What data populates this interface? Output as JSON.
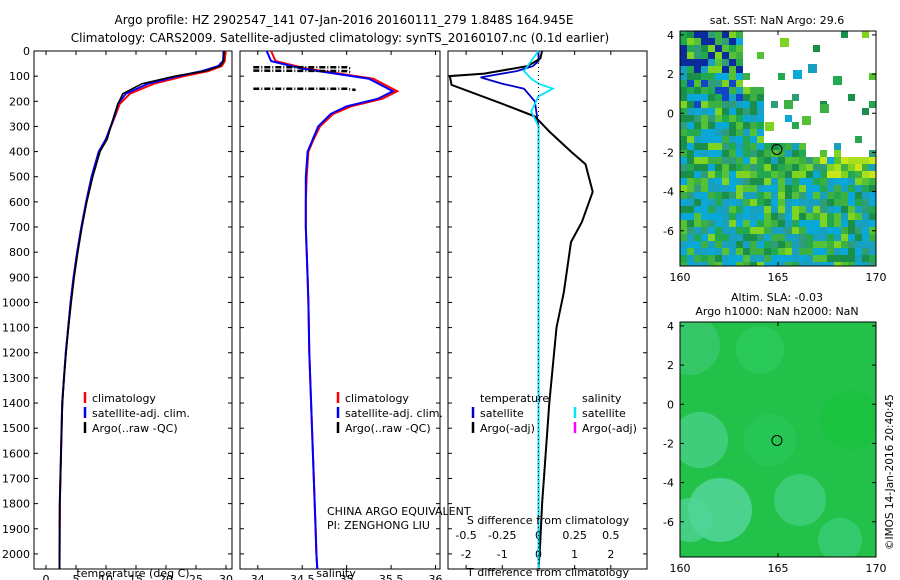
{
  "title": {
    "line1": "Argo profile: HZ 2902547_141 07-Jan-2016 20160111_279 1.848S 164.945E",
    "line2": "Climatology: CARS2009. Satellite-adjusted climatology: synTS_20160107.nc (0.1d earlier)"
  },
  "colors": {
    "climatology": "#ff0000",
    "satellite": "#0000ff",
    "argo": "#000000",
    "t_sat": "#0000cc",
    "s_sat": "#00e5ff",
    "s_argo": "#ff00ff"
  },
  "chart_data": [
    {
      "type": "line",
      "name": "temperature-profile",
      "xlabel": "temperature (deg C)",
      "ylabel": "",
      "xlim": [
        -2,
        31
      ],
      "ylim": [
        2060,
        0
      ],
      "xticks": [
        "0",
        "5",
        "10",
        "15",
        "20",
        "25",
        "30"
      ],
      "xtick_values": [
        0,
        5,
        10,
        15,
        20,
        25,
        30
      ],
      "yticks": [
        "0",
        "100",
        "200",
        "300",
        "400",
        "500",
        "600",
        "700",
        "800",
        "900",
        "1000",
        "1100",
        "1200",
        "1300",
        "1400",
        "1500",
        "1600",
        "1700",
        "1800",
        "1900",
        "2000"
      ],
      "ytick_values": [
        0,
        100,
        200,
        300,
        400,
        500,
        600,
        700,
        800,
        900,
        1000,
        1100,
        1200,
        1300,
        1400,
        1500,
        1600,
        1700,
        1800,
        1900,
        2000
      ],
      "legend": [
        "climatology",
        "satellite-adj. clim.",
        "Argo(..raw -QC)"
      ],
      "series": [
        {
          "name": "climatology",
          "x": [
            29.9,
            29.8,
            29.3,
            27,
            23,
            18,
            14,
            12.3,
            11.5,
            10,
            8.8,
            7.6,
            6.7,
            5.9,
            5.2,
            4.6,
            4.1,
            3.7,
            3.3,
            3,
            2.7,
            2.6,
            2.5,
            2.4,
            2.3,
            2.25
          ],
          "y": [
            0,
            40,
            60,
            80,
            100,
            130,
            170,
            210,
            260,
            350,
            400,
            500,
            600,
            700,
            800,
            900,
            1000,
            1100,
            1200,
            1300,
            1400,
            1500,
            1600,
            1700,
            1800,
            2060
          ]
        },
        {
          "name": "satellite-adj. clim.",
          "x": [
            29.6,
            29.5,
            28.7,
            26,
            22,
            17,
            13.3,
            12,
            11.4,
            10,
            8.8,
            7.6,
            6.7,
            5.9,
            5.2,
            4.6,
            4.1,
            3.7,
            3.3,
            3,
            2.7,
            2.6,
            2.5,
            2.4,
            2.3,
            2.25
          ],
          "y": [
            0,
            40,
            60,
            80,
            100,
            130,
            170,
            210,
            260,
            350,
            400,
            500,
            600,
            700,
            800,
            900,
            1000,
            1100,
            1200,
            1300,
            1400,
            1500,
            1600,
            1700,
            1800,
            2060
          ]
        },
        {
          "name": "Argo(..raw -QC)",
          "x": [
            29.7,
            29.6,
            29,
            26.5,
            21.5,
            16,
            12.8,
            12,
            11.3,
            10.2,
            9,
            7.8,
            6.8,
            6,
            5.3,
            4.7,
            4.2,
            3.75,
            3.35,
            3,
            2.75,
            2.62,
            2.5,
            2.4,
            2.3,
            2.25
          ],
          "y": [
            0,
            40,
            60,
            80,
            100,
            130,
            170,
            210,
            260,
            350,
            400,
            500,
            600,
            700,
            800,
            900,
            1000,
            1100,
            1200,
            1300,
            1400,
            1500,
            1600,
            1700,
            1800,
            2060
          ]
        }
      ]
    },
    {
      "type": "line",
      "name": "salinity-profile",
      "xlabel": "salinity",
      "xlim": [
        33.8,
        36.05
      ],
      "ylim": [
        2060,
        0
      ],
      "xticks": [
        "34",
        "34.5",
        "35",
        "35.5",
        "36"
      ],
      "xtick_values": [
        34,
        34.5,
        35,
        35.5,
        36
      ],
      "legend": [
        "climatology",
        "satellite-adj. clim.",
        "Argo(..raw -QC)"
      ],
      "annotation": [
        "CHINA ARGO EQUIVALENT",
        "PI: ZENGHONG LIU"
      ],
      "series": [
        {
          "name": "climatology",
          "x": [
            34.15,
            34.2,
            34.55,
            35.3,
            35.57,
            35.4,
            35.05,
            34.85,
            34.7,
            34.63,
            34.57,
            34.55,
            34.54,
            34.54,
            34.55,
            34.56,
            34.57,
            34.58,
            34.6,
            34.62,
            34.64,
            34.65,
            34.66,
            34.67
          ],
          "y": [
            0,
            40,
            70,
            110,
            160,
            190,
            220,
            250,
            300,
            350,
            400,
            500,
            600,
            700,
            800,
            900,
            1000,
            1200,
            1400,
            1600,
            1800,
            1900,
            2000,
            2060
          ]
        },
        {
          "name": "satellite-adj. clim.",
          "x": [
            34.1,
            34.15,
            34.5,
            35.25,
            35.52,
            35.35,
            35.0,
            34.82,
            34.68,
            34.62,
            34.56,
            34.54,
            34.54,
            34.54,
            34.55,
            34.56,
            34.57,
            34.58,
            34.6,
            34.62,
            34.64,
            34.65,
            34.66,
            34.67
          ],
          "y": [
            0,
            40,
            70,
            110,
            160,
            190,
            220,
            250,
            300,
            350,
            400,
            500,
            600,
            700,
            800,
            900,
            1000,
            1200,
            1400,
            1600,
            1800,
            1900,
            2000,
            2060
          ]
        }
      ],
      "argo_segments": [
        {
          "x": [
            33.95,
            35.0,
            35.05
          ],
          "y": [
            65,
            65,
            70
          ]
        },
        {
          "x": [
            33.95,
            35.0,
            35.05
          ],
          "y": [
            78,
            80,
            85
          ]
        },
        {
          "x": [
            33.95,
            35.0,
            35.1
          ],
          "y": [
            150,
            150,
            155
          ]
        }
      ]
    },
    {
      "type": "line",
      "name": "difference-from-climatology",
      "xlabel_bottom": "T difference from climatology",
      "xlabel_top": "S difference from climatology",
      "t_xlim": [
        -2.5,
        3.0
      ],
      "t_xticks": [
        "-2",
        "-1",
        "0",
        "1",
        "2"
      ],
      "t_xtick_values": [
        -2,
        -1,
        0,
        1,
        2
      ],
      "s_xticks": [
        "-0.5",
        "-0.25",
        "0",
        "0.25",
        "0.5"
      ],
      "s_xtick_values": [
        -0.5,
        -0.25,
        0,
        0.25,
        0.5
      ],
      "legend": {
        "temperature_title": "temperature",
        "salinity_title": "salinity",
        "temperature_items": [
          "satellite",
          "Argo(-adj)"
        ],
        "salinity_items": [
          "satellite",
          "Argo(-adj)"
        ]
      },
      "series": [
        {
          "name": "T satellite",
          "units": "deg C",
          "x": [
            0,
            0,
            -0.15,
            -0.6,
            -1.6,
            -1.0,
            -0.4,
            -0.1,
            0,
            0,
            0,
            0,
            0,
            0
          ],
          "y": [
            0,
            40,
            60,
            80,
            105,
            130,
            150,
            200,
            300,
            500,
            800,
            1200,
            1600,
            2060
          ]
        },
        {
          "name": "T Argo(-adj)",
          "units": "deg C",
          "x": [
            0.1,
            0.05,
            -0.3,
            -1.5,
            -2.45,
            -2.4,
            -1.0,
            -0.1,
            0.3,
            0.9,
            1.3,
            1.5,
            1.2,
            0.9,
            0.8,
            0.7,
            0.5,
            0.4,
            0.3,
            0.25,
            0.2,
            0.15,
            0.1,
            0.05,
            0.0
          ],
          "y": [
            0,
            30,
            60,
            90,
            100,
            135,
            210,
            260,
            320,
            400,
            450,
            560,
            680,
            760,
            860,
            960,
            1100,
            1250,
            1400,
            1500,
            1600,
            1700,
            1800,
            1950,
            2060
          ]
        },
        {
          "name": "S satellite",
          "units": "psu",
          "x": [
            0,
            -0.05,
            -0.1,
            -0.05,
            0,
            0.1,
            0,
            -0.05,
            0,
            0,
            0,
            0,
            0
          ],
          "y": [
            0,
            40,
            80,
            110,
            130,
            150,
            180,
            240,
            300,
            500,
            800,
            1200,
            2060
          ]
        }
      ]
    },
    {
      "type": "heatmap",
      "name": "sat-sst-map",
      "title": "sat. SST: NaN Argo: 29.6",
      "xlim": [
        160,
        170
      ],
      "ylim": [
        -7.8,
        4.2
      ],
      "xticks": [
        "160",
        "165",
        "170"
      ],
      "xtick_values": [
        160,
        165,
        170
      ],
      "yticks": [
        "4",
        "2",
        "0",
        "-2",
        "-4",
        "-6"
      ],
      "ytick_values": [
        4,
        2,
        0,
        -2,
        -4,
        -6
      ],
      "float_position": {
        "lon": 164.945,
        "lat": -1.848
      }
    },
    {
      "type": "heatmap",
      "name": "sla-map",
      "title_line1": "Altim. SLA: -0.03",
      "title_line2": "Argo h1000: NaN h2000: NaN",
      "xlim": [
        160,
        170
      ],
      "ylim": [
        -7.8,
        4.2
      ],
      "xticks": [
        "160",
        "165",
        "170"
      ],
      "xtick_values": [
        160,
        165,
        170
      ],
      "yticks": [
        "4",
        "2",
        "0",
        "-2",
        "-4",
        "-6"
      ],
      "ytick_values": [
        4,
        2,
        0,
        -2,
        -4,
        -6
      ],
      "float_position": {
        "lon": 164.945,
        "lat": -1.848
      }
    }
  ],
  "credit": "©IMOS 14-Jan-2016 20:40:45"
}
